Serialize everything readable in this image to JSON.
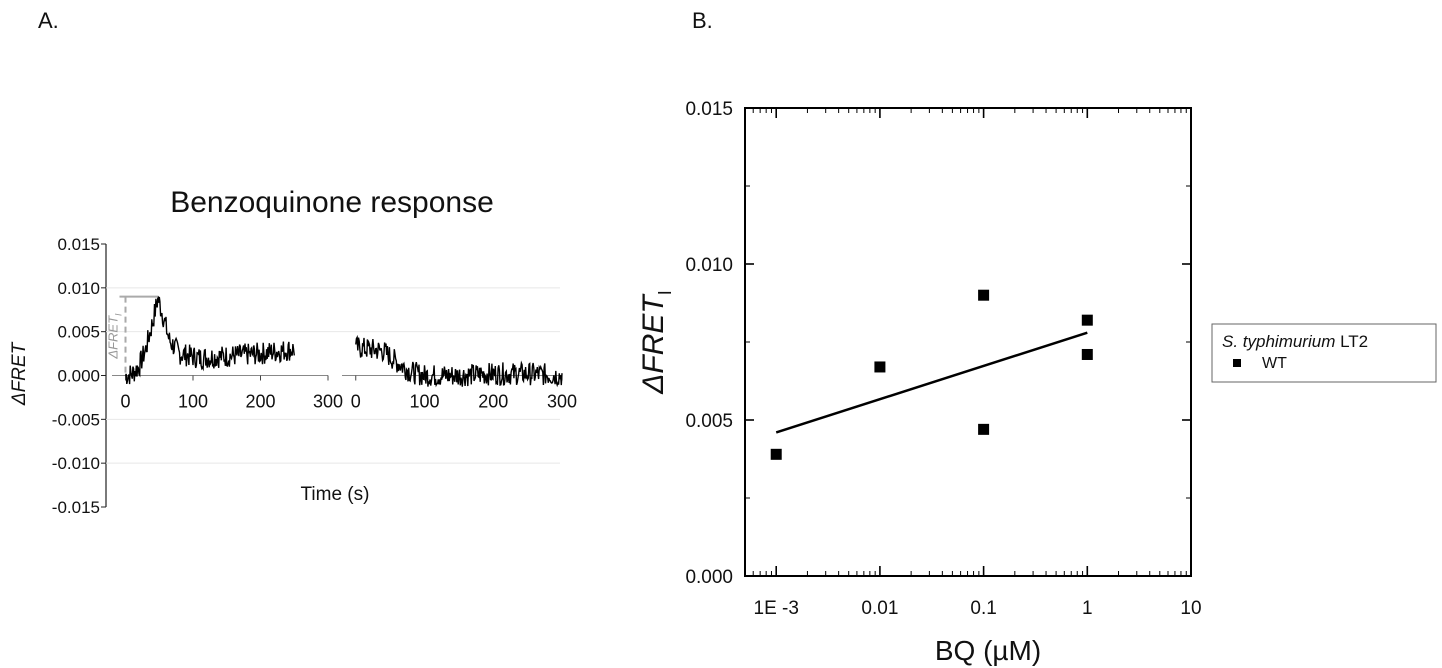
{
  "panel_labels": {
    "a": "A.",
    "b": "B."
  },
  "chart_data": [
    {
      "type": "line",
      "title": "Benzoquinone response",
      "xlabel": "Time (s)",
      "ylabel": "ΔFRET",
      "ylim": [
        -0.015,
        0.015
      ],
      "yticks": [
        "0.015",
        "0.010",
        "0.005",
        "0.000",
        "-0.005",
        "-0.010",
        "-0.015"
      ],
      "grid": true,
      "segments": [
        {
          "xlim": [
            -20,
            300
          ],
          "xticks": [
            "0",
            "100",
            "200",
            "300"
          ],
          "data_x": [
            0,
            250
          ],
          "shape": [
            [
              0,
              0.0
            ],
            [
              10,
              0.0002
            ],
            [
              20,
              0.001
            ],
            [
              30,
              0.003
            ],
            [
              40,
              0.006
            ],
            [
              48,
              0.0088
            ],
            [
              55,
              0.007
            ],
            [
              65,
              0.004
            ],
            [
              80,
              0.0025
            ],
            [
              110,
              0.002
            ],
            [
              150,
              0.0022
            ],
            [
              200,
              0.0025
            ],
            [
              250,
              0.003
            ]
          ]
        },
        {
          "xlim": [
            -20,
            300
          ],
          "xticks": [
            "0",
            "100",
            "200",
            "300"
          ],
          "data_x": [
            0,
            300
          ],
          "shape": [
            [
              0,
              0.0032
            ],
            [
              40,
              0.0028
            ],
            [
              60,
              0.0015
            ],
            [
              80,
              0.0004
            ],
            [
              100,
              0.0
            ],
            [
              150,
              0.0
            ],
            [
              200,
              0.0002
            ],
            [
              250,
              0.0002
            ],
            [
              300,
              0.0
            ]
          ]
        }
      ],
      "annotation": {
        "label": "ΔFRET",
        "label_subscript": "I",
        "peak_value": 0.009,
        "peak_x": 48
      }
    },
    {
      "type": "scatter",
      "xlabel": "BQ (µM)",
      "ylabel": "ΔFRET",
      "ylabel_subscript": "I",
      "xscale": "log",
      "xlim": [
        0.0005,
        10
      ],
      "ylim": [
        0,
        0.015
      ],
      "xtick_values": [
        0.001,
        0.01,
        0.1,
        1,
        10
      ],
      "xtick_labels": [
        "1E -3",
        "0.01",
        "0.1",
        "1",
        "10"
      ],
      "ytick_values": [
        0,
        0.005,
        0.01,
        0.015
      ],
      "ytick_labels": [
        "0.000",
        "0.005",
        "0.010",
        "0.015"
      ],
      "legend_position": "right",
      "legend": {
        "title_italic": "S. typhimurium",
        "title_rest": " LT2",
        "entries": [
          "WT"
        ]
      },
      "series": [
        {
          "name": "WT",
          "x": [
            0.001,
            0.01,
            0.1,
            0.1,
            1,
            1
          ],
          "y": [
            0.0039,
            0.0067,
            0.009,
            0.0047,
            0.0082,
            0.0071
          ]
        }
      ],
      "fit_line": {
        "x": [
          0.001,
          1
        ],
        "y": [
          0.0046,
          0.0078
        ]
      }
    }
  ]
}
